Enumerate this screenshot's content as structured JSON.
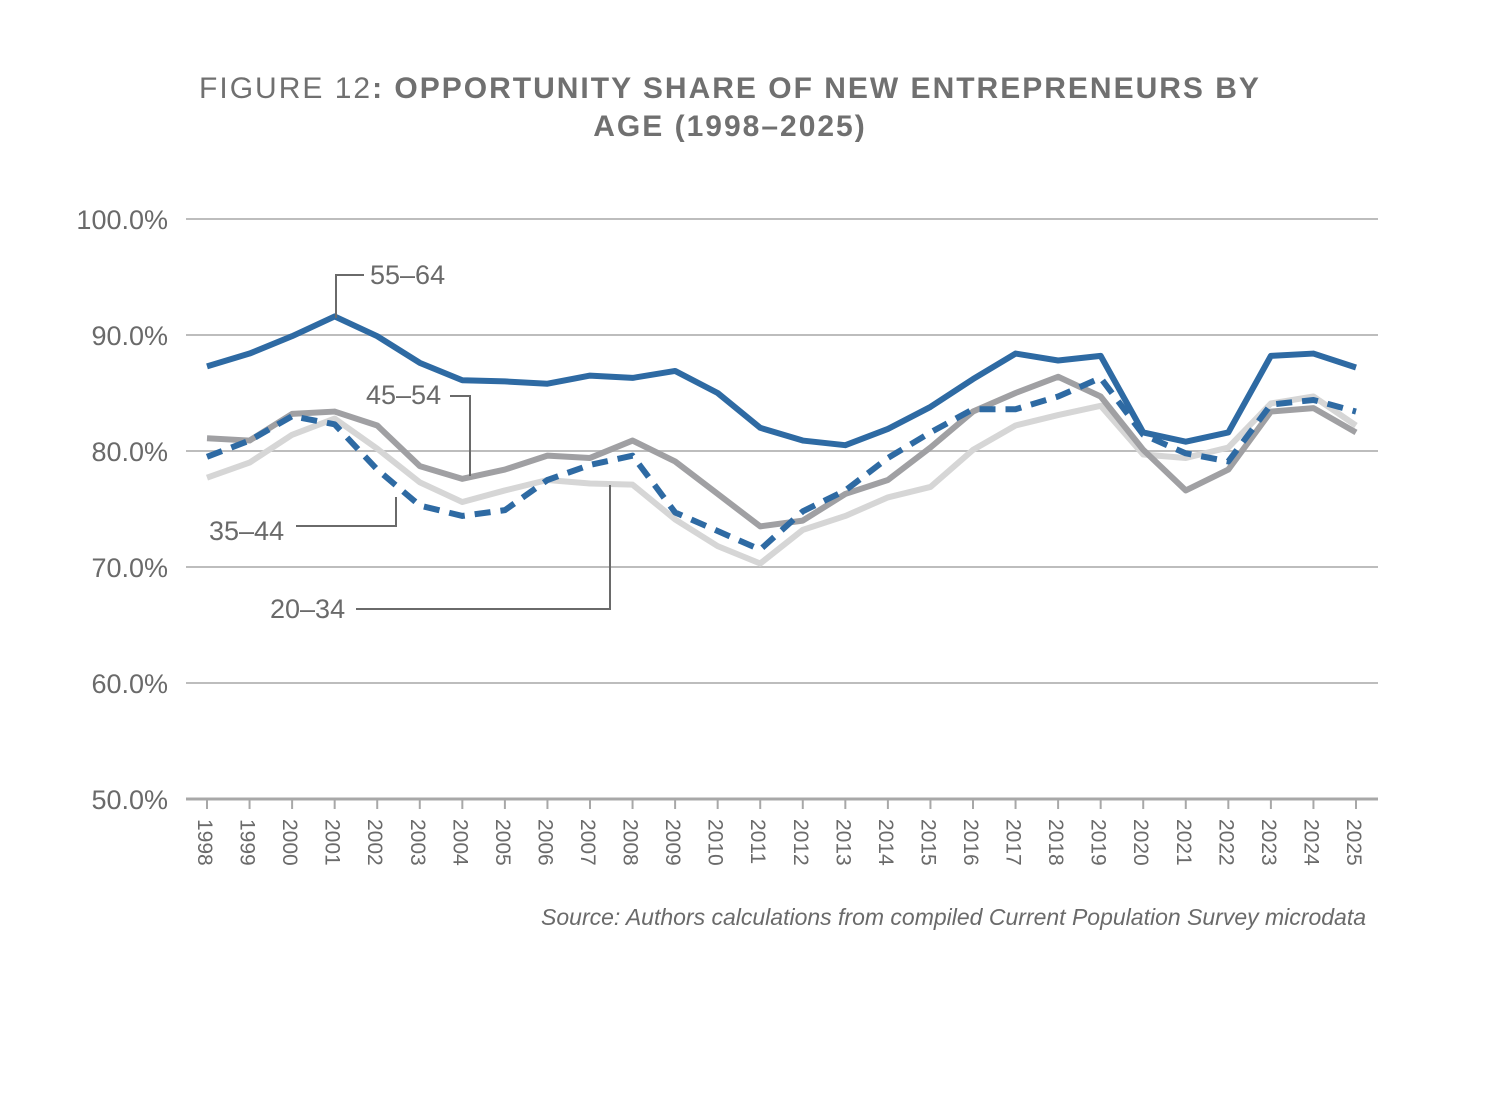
{
  "chart_data": {
    "type": "line",
    "title_prefix": "FIGURE 12",
    "title": ": OPPORTUNITY SHARE OF NEW ENTREPRENEURS BY AGE (1998–2025)",
    "source": "Source: Authors calculations from compiled Current Population Survey microdata",
    "categories": [
      "1998",
      "1999",
      "2000",
      "2001",
      "2002",
      "2003",
      "2004",
      "2005",
      "2006",
      "2007",
      "2008",
      "2009",
      "2010",
      "2011",
      "2012",
      "2013",
      "2014",
      "2015",
      "2016",
      "2017",
      "2018",
      "2019",
      "2020",
      "2021",
      "2022",
      "2023",
      "2024",
      "2025"
    ],
    "ylim": [
      50,
      100
    ],
    "yticks": [
      {
        "value": 50,
        "label": "50.0%"
      },
      {
        "value": 60,
        "label": "60.0%"
      },
      {
        "value": 70,
        "label": "70.0%"
      },
      {
        "value": 80,
        "label": "80.0%"
      },
      {
        "value": 90,
        "label": "90.0%"
      },
      {
        "value": 100,
        "label": "100.0%"
      }
    ],
    "grid": true,
    "series": [
      {
        "name": "20–34",
        "color": "#d6d6d6",
        "dashed": false,
        "values": [
          77.7,
          79.0,
          81.4,
          82.8,
          80.2,
          77.3,
          75.6,
          76.6,
          77.5,
          77.2,
          77.1,
          74.1,
          71.8,
          70.3,
          73.2,
          74.4,
          76.0,
          76.9,
          80.1,
          82.2,
          83.1,
          83.9,
          79.7,
          79.4,
          80.3,
          84.1,
          84.7,
          82.2
        ]
      },
      {
        "name": "45–54",
        "color": "#a0a0a3",
        "dashed": false,
        "values": [
          81.1,
          80.9,
          83.2,
          83.4,
          82.2,
          78.7,
          77.6,
          78.4,
          79.6,
          79.4,
          80.9,
          79.1,
          76.3,
          73.5,
          74.0,
          76.3,
          77.5,
          80.3,
          83.4,
          85.0,
          86.4,
          84.7,
          80.1,
          76.6,
          78.4,
          83.4,
          83.7,
          81.6
        ]
      },
      {
        "name": "35–44",
        "color": "#2e6aa3",
        "dashed": true,
        "values": [
          79.5,
          80.9,
          83.0,
          82.3,
          78.4,
          75.3,
          74.4,
          74.9,
          77.5,
          78.8,
          79.6,
          74.7,
          73.1,
          71.5,
          74.8,
          76.6,
          79.4,
          81.6,
          83.6,
          83.6,
          84.7,
          86.3,
          81.4,
          79.8,
          79.1,
          84.0,
          84.4,
          83.4
        ]
      },
      {
        "name": "55–64",
        "color": "#2e6aa3",
        "dashed": false,
        "values": [
          87.3,
          88.4,
          89.9,
          91.6,
          89.9,
          87.6,
          86.1,
          86.0,
          85.8,
          86.5,
          86.3,
          86.9,
          85.0,
          82.0,
          80.9,
          80.5,
          81.9,
          83.8,
          86.2,
          88.4,
          87.8,
          88.2,
          81.6,
          80.8,
          81.6,
          88.2,
          88.4,
          87.2
        ]
      }
    ]
  }
}
